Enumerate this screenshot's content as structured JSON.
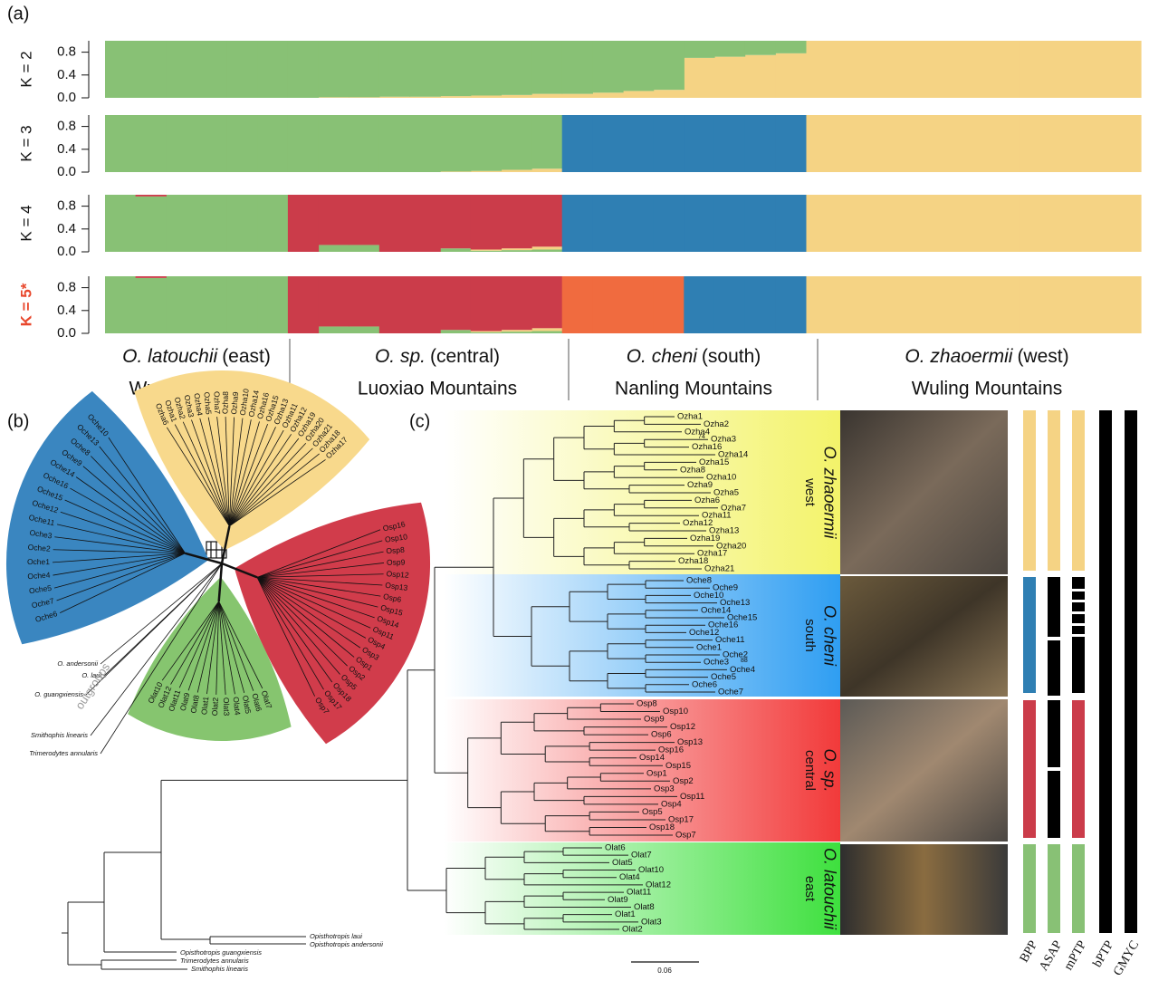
{
  "panel_labels": [
    "(a)",
    "(b)",
    "(c)"
  ],
  "chart_data": [
    {
      "type": "bar",
      "stacked": true,
      "ylabel": "K = 2",
      "ylim": [
        0,
        1
      ],
      "yticks": [
        {
          "value": 0,
          "label": "0.0"
        },
        0.4,
        0.8
      ],
      "categories": [
        null,
        null,
        null,
        null,
        null,
        null,
        null,
        null,
        null,
        null,
        null,
        null,
        null,
        null,
        null,
        null,
        null,
        null,
        null,
        null,
        null,
        null,
        null,
        null,
        null,
        null,
        null,
        null,
        null,
        null,
        null,
        null,
        null,
        null
      ],
      "series": [
        {
          "color": "#f5d384",
          "values": [
            0,
            0,
            0,
            0,
            0,
            0,
            0,
            0.01,
            0.01,
            0.02,
            0.02,
            0.03,
            0.04,
            0.05,
            0.07,
            0.07,
            0.09,
            0.12,
            0.14,
            0.7,
            0.72,
            0.75,
            0.78,
            1,
            1,
            1,
            1,
            1,
            1,
            1,
            1,
            1,
            1,
            1
          ]
        },
        {
          "color": "#88c175",
          "values": [
            1,
            1,
            1,
            1,
            1,
            1,
            1,
            0.99,
            0.99,
            0.98,
            0.98,
            0.97,
            0.96,
            0.95,
            0.93,
            0.93,
            0.91,
            0.88,
            0.86,
            0.3,
            0.28,
            0.25,
            0.22,
            0,
            0,
            0,
            0,
            0,
            0,
            0,
            0,
            0,
            0,
            0
          ]
        }
      ]
    },
    {
      "type": "bar",
      "stacked": true,
      "ylabel": "K = 3",
      "ylim": [
        0,
        1
      ],
      "yticks": [
        {
          "value": 0,
          "label": "0.0"
        },
        0.4,
        0.8
      ],
      "categories": [
        null,
        null,
        null,
        null,
        null,
        null,
        null,
        null,
        null,
        null,
        null,
        null,
        null,
        null,
        null,
        null,
        null,
        null,
        null,
        null,
        null,
        null,
        null,
        null,
        null,
        null,
        null,
        null,
        null,
        null,
        null,
        null,
        null,
        null
      ],
      "series": [
        {
          "color": "#f5d384",
          "values": [
            0,
            0,
            0,
            0,
            0,
            0,
            0,
            0,
            0,
            0,
            0,
            0.01,
            0.02,
            0.04,
            0.06,
            0,
            0,
            0,
            0,
            0,
            0,
            0,
            0,
            1,
            1,
            1,
            1,
            1,
            1,
            1,
            1,
            1,
            1,
            1
          ]
        },
        {
          "color": "#88c175",
          "values": [
            1,
            1,
            1,
            1,
            1,
            1,
            1,
            1,
            1,
            1,
            1,
            0.99,
            0.98,
            0.96,
            0.94,
            0,
            0,
            0,
            0,
            0,
            0,
            0,
            0,
            0,
            0,
            0,
            0,
            0,
            0,
            0,
            0,
            0,
            0,
            0
          ]
        },
        {
          "color": "#2f7fb3",
          "values": [
            0,
            0,
            0,
            0,
            0,
            0,
            0,
            0,
            0,
            0,
            0,
            0,
            0,
            0,
            0,
            1,
            1,
            1,
            1,
            1,
            1,
            1,
            1,
            0,
            0,
            0,
            0,
            0,
            0,
            0,
            0,
            0,
            0,
            0
          ]
        }
      ]
    },
    {
      "type": "bar",
      "stacked": true,
      "ylabel": "K = 4",
      "ylim": [
        0,
        1
      ],
      "yticks": [
        {
          "value": 0,
          "label": "0.0"
        },
        0.4,
        0.8
      ],
      "categories": [
        null,
        null,
        null,
        null,
        null,
        null,
        null,
        null,
        null,
        null,
        null,
        null,
        null,
        null,
        null,
        null,
        null,
        null,
        null,
        null,
        null,
        null,
        null,
        null,
        null,
        null,
        null,
        null,
        null,
        null,
        null,
        null,
        null,
        null
      ],
      "series": [
        {
          "color": "#88c175",
          "values": [
            1,
            0.97,
            1,
            1,
            1,
            1,
            0,
            0.12,
            0.12,
            0,
            0,
            0.06,
            0.02,
            0.03,
            0.04,
            0,
            0,
            0,
            0,
            0,
            0,
            0,
            0,
            0,
            0,
            0,
            0,
            0,
            0,
            0,
            0,
            0,
            0,
            0
          ]
        },
        {
          "color": "#f5d384",
          "values": [
            0,
            0,
            0,
            0,
            0,
            0,
            0,
            0,
            0,
            0,
            0,
            0,
            0.02,
            0.03,
            0.05,
            0,
            0,
            0,
            0,
            0,
            0,
            0,
            0,
            1,
            1,
            1,
            1,
            1,
            1,
            1,
            1,
            1,
            1,
            1
          ]
        },
        {
          "color": "#cb3c4a",
          "values": [
            0,
            0.03,
            0,
            0,
            0,
            0,
            1,
            0.88,
            0.88,
            1,
            1,
            0.94,
            0.96,
            0.94,
            0.91,
            0,
            0,
            0,
            0,
            0,
            0,
            0,
            0,
            0,
            0,
            0,
            0,
            0,
            0,
            0,
            0,
            0,
            0,
            0
          ]
        },
        {
          "color": "#2f7fb3",
          "values": [
            0,
            0,
            0,
            0,
            0,
            0,
            0,
            0,
            0,
            0,
            0,
            0,
            0,
            0,
            0,
            1,
            1,
            1,
            1,
            1,
            1,
            1,
            1,
            0,
            0,
            0,
            0,
            0,
            0,
            0,
            0,
            0,
            0,
            0
          ]
        }
      ]
    },
    {
      "type": "bar",
      "stacked": true,
      "ylabel": "K = 5*",
      "ylabel_color": "#e8472c",
      "ylim": [
        0,
        1
      ],
      "yticks": [
        {
          "value": 0,
          "label": "0.0"
        },
        0.4,
        0.8
      ],
      "categories": [
        null,
        null,
        null,
        null,
        null,
        null,
        null,
        null,
        null,
        null,
        null,
        null,
        null,
        null,
        null,
        null,
        null,
        null,
        null,
        null,
        null,
        null,
        null,
        null,
        null,
        null,
        null,
        null,
        null,
        null,
        null,
        null,
        null,
        null
      ],
      "series": [
        {
          "color": "#88c175",
          "values": [
            1,
            0.97,
            1,
            1,
            1,
            1,
            0,
            0.12,
            0.12,
            0,
            0,
            0.06,
            0.02,
            0.03,
            0.04,
            0,
            0,
            0,
            0,
            0,
            0,
            0,
            0,
            0,
            0,
            0,
            0,
            0,
            0,
            0,
            0,
            0,
            0,
            0
          ]
        },
        {
          "color": "#f5d384",
          "values": [
            0,
            0,
            0,
            0,
            0,
            0,
            0,
            0,
            0,
            0,
            0,
            0,
            0.02,
            0.03,
            0.05,
            0,
            0,
            0,
            0,
            0,
            0,
            0,
            0,
            1,
            1,
            1,
            1,
            1,
            1,
            1,
            1,
            1,
            1,
            1
          ]
        },
        {
          "color": "#cb3c4a",
          "values": [
            0,
            0.03,
            0,
            0,
            0,
            0,
            1,
            0.88,
            0.88,
            1,
            1,
            0.94,
            0.96,
            0.94,
            0.91,
            0,
            0,
            0,
            0,
            0,
            0,
            0,
            0,
            0,
            0,
            0,
            0,
            0,
            0,
            0,
            0,
            0,
            0,
            0
          ]
        },
        {
          "color": "#f06b3f",
          "values": [
            0,
            0,
            0,
            0,
            0,
            0,
            0,
            0,
            0,
            0,
            0,
            0,
            0,
            0,
            0,
            1,
            1,
            1,
            1,
            0,
            0,
            0,
            0,
            0,
            0,
            0,
            0,
            0,
            0,
            0,
            0,
            0,
            0,
            0
          ]
        },
        {
          "color": "#2f7fb3",
          "values": [
            0,
            0,
            0,
            0,
            0,
            0,
            0,
            0,
            0,
            0,
            0,
            0,
            0,
            0,
            0,
            0,
            0,
            0,
            0,
            1,
            1,
            1,
            1,
            0,
            0,
            0,
            0,
            0,
            0,
            0,
            0,
            0,
            0,
            0
          ]
        }
      ]
    }
  ],
  "groups": [
    {
      "species": "O. latouchii",
      "region": "(east)",
      "mountains": "Wuyi Mountains"
    },
    {
      "species": "O. sp.",
      "region": "(central)",
      "mountains": "Luoxiao Mountains"
    },
    {
      "species": "O. cheni",
      "region": "(south)",
      "mountains": "Nanling Mountains"
    },
    {
      "species": "O. zhaoermii",
      "region": "(west)",
      "mountains": "Wuling Mountains"
    }
  ],
  "network": {
    "clades": [
      {
        "color": "#3a86c0",
        "tips": [
          "Oche10",
          "Oche13",
          "Oche8",
          "Oche9",
          "Oche14",
          "Oche16",
          "Oche15",
          "Oche12",
          "Oche11",
          "Oche3",
          "Oche2",
          "Oche1",
          "Oche4",
          "Oche5",
          "Oche7",
          "Oche6"
        ]
      },
      {
        "color": "#f8d98c",
        "tips": [
          "Ozha6",
          "Ozha1",
          "Ozha2",
          "Ozha3",
          "Ozha4",
          "Ozha5",
          "Ozha7",
          "Ozha8",
          "Ozha9",
          "Ozha10",
          "Ozha14",
          "Ozha16",
          "Ozha15",
          "Ozha13",
          "Ozha11",
          "Ozha12",
          "Ozha19",
          "Ozha20",
          "Ozha21",
          "Ozha18",
          "Ozha17"
        ]
      },
      {
        "color": "#d13c4b",
        "tips": [
          "Osp16",
          "Osp10",
          "Osp8",
          "Osp9",
          "Osp12",
          "Osp13",
          "Osp6",
          "Osp15",
          "Osp14",
          "Osp11",
          "Osp4",
          "Osp3",
          "Osp1",
          "Osp2",
          "Osp5",
          "Osp18",
          "Osp17",
          "Osp7"
        ]
      },
      {
        "color": "#86c56f",
        "tips": [
          "Olat10",
          "Olat12",
          "Olat11",
          "Olat9",
          "Olat8",
          "Olat1",
          "Olat2",
          "Olat3",
          "Olat4",
          "Olat5",
          "Olat6",
          "Olat7"
        ]
      }
    ],
    "outgroups": [
      "O. andersonii",
      "O. laui",
      "O. guangxiensis",
      "Smithophis linearis",
      "Trimerodytes annularis"
    ],
    "outgroups_label": "outgroups"
  },
  "outgroup_tree": {
    "tips": [
      "Opisthotropis laui",
      "Opisthotropis andersonii",
      "Opisthotropis guangxiensis",
      "Trimerodytes annularis",
      "Smithophis linearis"
    ]
  },
  "tree": {
    "clades": [
      {
        "species": "O. zhaoermii",
        "region": "west",
        "color": "#f3f36a",
        "tips": [
          "Ozha1",
          "Ozha2",
          "Ozha4",
          "Ozha3",
          "Ozha16",
          "Ozha14",
          "Ozha15",
          "Ozha8",
          "Ozha10",
          "Ozha9",
          "Ozha5",
          "Ozha6",
          "Ozha7",
          "Ozha11",
          "Ozha12",
          "Ozha13",
          "Ozha19",
          "Ozha20",
          "Ozha17",
          "Ozha18",
          "Ozha21"
        ]
      },
      {
        "species": "O. cheni",
        "region": "south",
        "color": "#2f9ef2",
        "tips": [
          "Oche8",
          "Oche9",
          "Oche10",
          "Oche13",
          "Oche14",
          "Oche15",
          "Oche16",
          "Oche12",
          "Oche11",
          "Oche1",
          "Oche2",
          "Oche3",
          "Oche4",
          "Oche5",
          "Oche6",
          "Oche7"
        ]
      },
      {
        "species": "O. sp.",
        "region": "central",
        "color": "#f23a3a",
        "tips": [
          "Osp8",
          "Osp10",
          "Osp9",
          "Osp12",
          "Osp6",
          "Osp13",
          "Osp16",
          "Osp14",
          "Osp15",
          "Osp1",
          "Osp2",
          "Osp3",
          "Osp11",
          "Osp4",
          "Osp5",
          "Osp17",
          "Osp18",
          "Osp7"
        ]
      },
      {
        "species": "O. latouchii",
        "region": "east",
        "color": "#3ee03e",
        "tips": [
          "Olat6",
          "Olat7",
          "Olat5",
          "Olat10",
          "Olat4",
          "Olat12",
          "Olat11",
          "Olat9",
          "Olat8",
          "Olat1",
          "Olat3",
          "Olat2"
        ]
      }
    ],
    "node_labels": [
      74,
      88
    ],
    "scale_bar": 0.06
  },
  "delimitation": {
    "methods": [
      "BPP",
      "ASAP",
      "mPTP",
      "bPTP",
      "GMYC"
    ]
  }
}
